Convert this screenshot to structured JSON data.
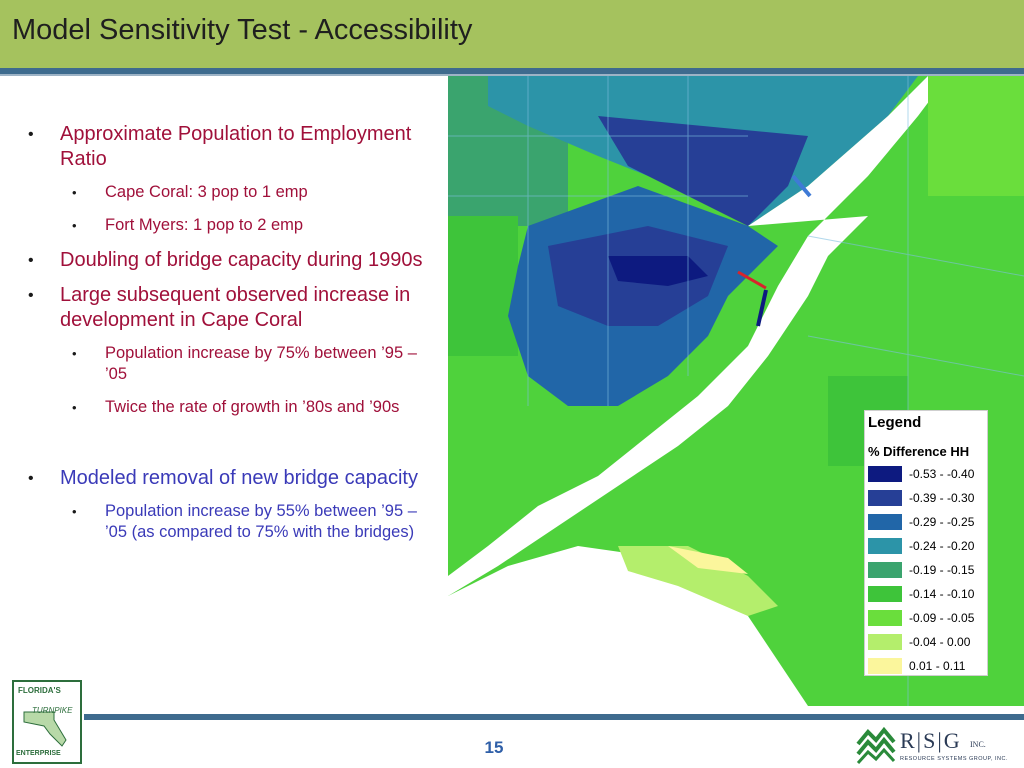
{
  "slide": {
    "title": "Model Sensitivity Test - Accessibility",
    "page_number": "15"
  },
  "bullets": {
    "b1": {
      "marker": "•",
      "text": "Approximate Population to Employment Ratio"
    },
    "b1a": {
      "marker": "•",
      "text": "Cape Coral: 3 pop to 1 emp"
    },
    "b1b": {
      "marker": "•",
      "text": "Fort Myers: 1 pop to 2 emp"
    },
    "b2": {
      "marker": "•",
      "text": "Doubling of bridge capacity during 1990s"
    },
    "b3": {
      "marker": "•",
      "text": "Large subsequent observed increase in development in Cape Coral"
    },
    "b3a": {
      "marker": "•",
      "text": "Population increase by 75% between ’95 – ’05"
    },
    "b3b": {
      "marker": "•",
      "text": "Twice the rate of growth in ’80s and ’90s"
    },
    "b4": {
      "marker": "•",
      "text": "Modeled removal of new bridge capacity"
    },
    "b4a": {
      "marker": "•",
      "text": "Population increase by 55% between ’95 – ’05 (as compared to 75% with the bridges)"
    }
  },
  "legend": {
    "title": "Legend",
    "subtitle": "% Difference HH",
    "items": [
      {
        "label": "-0.53 - -0.40",
        "color": "#0d1a80"
      },
      {
        "label": "-0.39 - -0.30",
        "color": "#263f96"
      },
      {
        "label": "-0.29 - -0.25",
        "color": "#2166a8"
      },
      {
        "label": "-0.24 - -0.20",
        "color": "#2c94a8"
      },
      {
        "label": "-0.19 - -0.15",
        "color": "#3aa46e"
      },
      {
        "label": "-0.14 - -0.10",
        "color": "#3ec43a"
      },
      {
        "label": "-0.09 - -0.05",
        "color": "#6ade3c"
      },
      {
        "label": "-0.04 - 0.00",
        "color": "#b4ee6c"
      },
      {
        "label": "0.01 - 0.11",
        "color": "#fbf69c"
      }
    ]
  },
  "logos": {
    "left": {
      "top": "FLORIDA'S",
      "mid": "TURNPIKE",
      "bottom": "ENTERPRISE"
    },
    "right": {
      "letters": "R|S|G",
      "inc": "INC.",
      "sub": "RESOURCE SYSTEMS GROUP, INC."
    }
  },
  "colors": {
    "title_bar": "#a5c25e",
    "rule": "#3e6b8e",
    "bullet_text": "#a0103a",
    "bullet_text_alt": "#3a3ab8",
    "page_number": "#2f5fa8"
  }
}
